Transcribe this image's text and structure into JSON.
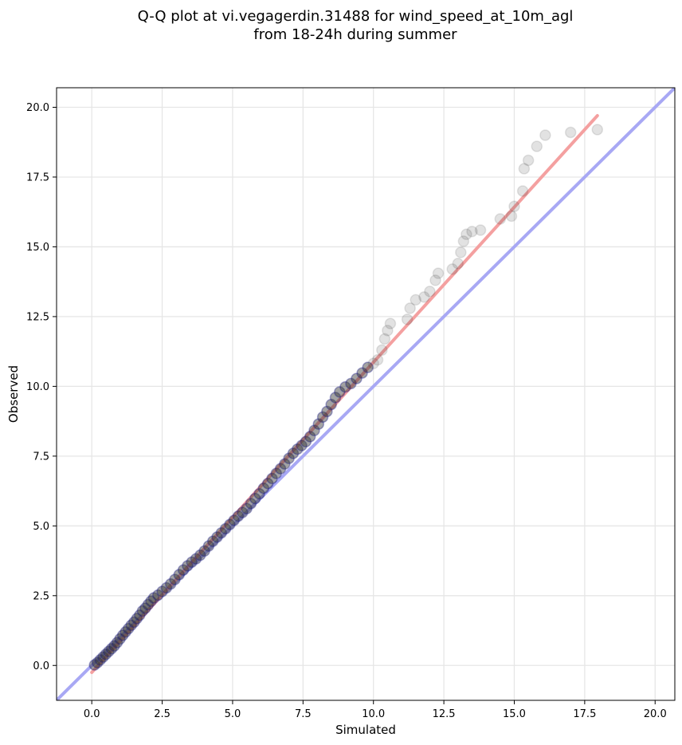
{
  "chart_data": {
    "type": "scatter",
    "title_lines": [
      "Q-Q plot at vi.vegagerdin.31488 for wind_speed_at_10m_agl",
      "from 18-24h during summer"
    ],
    "xlabel": "Simulated",
    "ylabel": "Observed",
    "xlim": [
      -1.25,
      20.7
    ],
    "ylim": [
      -1.25,
      20.7
    ],
    "xticks": [
      "0.0",
      "2.5",
      "5.0",
      "7.5",
      "10.0",
      "12.5",
      "15.0",
      "17.5",
      "20.0"
    ],
    "yticks": [
      "0.0",
      "2.5",
      "5.0",
      "7.5",
      "10.0",
      "12.5",
      "15.0",
      "17.5",
      "20.0"
    ],
    "tick_values": [
      0,
      2.5,
      5,
      7.5,
      10,
      12.5,
      15,
      17.5,
      20
    ],
    "grid": true,
    "colors": {
      "fit_line": "#f4a0a0",
      "identity_line": "#a8a8f4",
      "points": "#333333",
      "dense_core": "#14148a"
    },
    "identity_line": {
      "from": [
        -1.25,
        -1.25
      ],
      "to": [
        20.7,
        20.7
      ]
    },
    "fit_line": {
      "from": [
        0.0,
        -0.25
      ],
      "to": [
        17.95,
        19.7
      ]
    },
    "points": [
      {
        "x": 0.1,
        "y": 0.02
      },
      {
        "x": 0.2,
        "y": 0.1
      },
      {
        "x": 0.3,
        "y": 0.2
      },
      {
        "x": 0.4,
        "y": 0.3
      },
      {
        "x": 0.5,
        "y": 0.4
      },
      {
        "x": 0.6,
        "y": 0.5
      },
      {
        "x": 0.7,
        "y": 0.6
      },
      {
        "x": 0.8,
        "y": 0.7
      },
      {
        "x": 0.9,
        "y": 0.82
      },
      {
        "x": 1.0,
        "y": 0.95
      },
      {
        "x": 1.1,
        "y": 1.08
      },
      {
        "x": 1.2,
        "y": 1.2
      },
      {
        "x": 1.3,
        "y": 1.32
      },
      {
        "x": 1.4,
        "y": 1.44
      },
      {
        "x": 1.5,
        "y": 1.55
      },
      {
        "x": 1.6,
        "y": 1.68
      },
      {
        "x": 1.7,
        "y": 1.8
      },
      {
        "x": 1.8,
        "y": 1.95
      },
      {
        "x": 1.9,
        "y": 2.05
      },
      {
        "x": 2.0,
        "y": 2.18
      },
      {
        "x": 2.1,
        "y": 2.3
      },
      {
        "x": 2.2,
        "y": 2.42
      },
      {
        "x": 2.35,
        "y": 2.52
      },
      {
        "x": 2.5,
        "y": 2.65
      },
      {
        "x": 2.65,
        "y": 2.78
      },
      {
        "x": 2.8,
        "y": 2.92
      },
      {
        "x": 2.95,
        "y": 3.08
      },
      {
        "x": 3.1,
        "y": 3.25
      },
      {
        "x": 3.25,
        "y": 3.42
      },
      {
        "x": 3.4,
        "y": 3.57
      },
      {
        "x": 3.55,
        "y": 3.7
      },
      {
        "x": 3.7,
        "y": 3.82
      },
      {
        "x": 3.85,
        "y": 3.95
      },
      {
        "x": 4.0,
        "y": 4.1
      },
      {
        "x": 4.15,
        "y": 4.28
      },
      {
        "x": 4.3,
        "y": 4.45
      },
      {
        "x": 4.45,
        "y": 4.6
      },
      {
        "x": 4.6,
        "y": 4.75
      },
      {
        "x": 4.75,
        "y": 4.9
      },
      {
        "x": 4.9,
        "y": 5.05
      },
      {
        "x": 5.05,
        "y": 5.2
      },
      {
        "x": 5.2,
        "y": 5.35
      },
      {
        "x": 5.35,
        "y": 5.48
      },
      {
        "x": 5.5,
        "y": 5.62
      },
      {
        "x": 5.65,
        "y": 5.8
      },
      {
        "x": 5.8,
        "y": 5.98
      },
      {
        "x": 5.95,
        "y": 6.15
      },
      {
        "x": 6.1,
        "y": 6.35
      },
      {
        "x": 6.25,
        "y": 6.52
      },
      {
        "x": 6.4,
        "y": 6.7
      },
      {
        "x": 6.55,
        "y": 6.88
      },
      {
        "x": 6.7,
        "y": 7.05
      },
      {
        "x": 6.85,
        "y": 7.22
      },
      {
        "x": 7.0,
        "y": 7.42
      },
      {
        "x": 7.15,
        "y": 7.6
      },
      {
        "x": 7.3,
        "y": 7.75
      },
      {
        "x": 7.45,
        "y": 7.88
      },
      {
        "x": 7.6,
        "y": 8.02
      },
      {
        "x": 7.75,
        "y": 8.2
      },
      {
        "x": 7.9,
        "y": 8.42
      },
      {
        "x": 8.05,
        "y": 8.65
      },
      {
        "x": 8.2,
        "y": 8.9
      },
      {
        "x": 8.35,
        "y": 9.1
      },
      {
        "x": 8.5,
        "y": 9.35
      },
      {
        "x": 8.65,
        "y": 9.6
      },
      {
        "x": 8.8,
        "y": 9.8
      },
      {
        "x": 9.0,
        "y": 9.98
      },
      {
        "x": 9.2,
        "y": 10.1
      },
      {
        "x": 9.4,
        "y": 10.28
      },
      {
        "x": 9.6,
        "y": 10.48
      },
      {
        "x": 9.8,
        "y": 10.68
      },
      {
        "x": 10.0,
        "y": 10.82
      },
      {
        "x": 10.15,
        "y": 10.95
      },
      {
        "x": 10.3,
        "y": 11.3
      },
      {
        "x": 10.4,
        "y": 11.7
      },
      {
        "x": 10.5,
        "y": 12.0
      },
      {
        "x": 10.6,
        "y": 12.25
      },
      {
        "x": 11.2,
        "y": 12.4
      },
      {
        "x": 11.3,
        "y": 12.8
      },
      {
        "x": 11.5,
        "y": 13.1
      },
      {
        "x": 11.8,
        "y": 13.2
      },
      {
        "x": 12.0,
        "y": 13.4
      },
      {
        "x": 12.2,
        "y": 13.8
      },
      {
        "x": 12.3,
        "y": 14.05
      },
      {
        "x": 12.8,
        "y": 14.2
      },
      {
        "x": 13.0,
        "y": 14.4
      },
      {
        "x": 13.1,
        "y": 14.8
      },
      {
        "x": 13.2,
        "y": 15.2
      },
      {
        "x": 13.3,
        "y": 15.45
      },
      {
        "x": 13.5,
        "y": 15.55
      },
      {
        "x": 13.8,
        "y": 15.6
      },
      {
        "x": 14.5,
        "y": 16.0
      },
      {
        "x": 14.9,
        "y": 16.1
      },
      {
        "x": 15.0,
        "y": 16.45
      },
      {
        "x": 15.3,
        "y": 17.0
      },
      {
        "x": 15.35,
        "y": 17.8
      },
      {
        "x": 15.5,
        "y": 18.1
      },
      {
        "x": 15.8,
        "y": 18.6
      },
      {
        "x": 16.1,
        "y": 19.0
      },
      {
        "x": 17.0,
        "y": 19.1
      },
      {
        "x": 17.95,
        "y": 19.2
      }
    ]
  }
}
